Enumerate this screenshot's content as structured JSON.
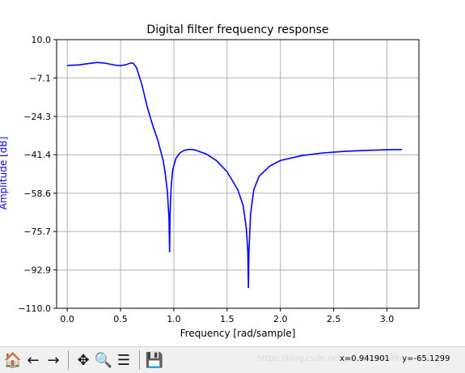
{
  "chart_data": {
    "type": "line",
    "title": "Digital filter frequency response",
    "xlabel": "Frequency [rad/sample]",
    "ylabel": "Amplitude [dB]",
    "xlim": [
      -0.1,
      3.3
    ],
    "ylim": [
      -110.0,
      10.0
    ],
    "xticks": [
      "0.0",
      "0.5",
      "1.0",
      "1.5",
      "2.0",
      "2.5",
      "3.0"
    ],
    "xtick_values": [
      0.0,
      0.5,
      1.0,
      1.5,
      2.0,
      2.5,
      3.0
    ],
    "yticks": [
      "10.0",
      "−7.1",
      "−24.3",
      "−41.4",
      "−58.6",
      "−75.7",
      "−92.9",
      "−110.0"
    ],
    "ytick_values": [
      10.0,
      -7.1,
      -24.3,
      -41.4,
      -58.6,
      -75.7,
      -92.9,
      -110.0
    ],
    "grid": true,
    "line_color": "#0000ff",
    "ylabel_color": "#0000ff",
    "series": [
      {
        "x": [
          0.0,
          0.1,
          0.2,
          0.28,
          0.35,
          0.45,
          0.5,
          0.55,
          0.6,
          0.62,
          0.65,
          0.7,
          0.75,
          0.8,
          0.85,
          0.9,
          0.92,
          0.94,
          0.955,
          0.96,
          0.965,
          0.975,
          0.99,
          1.02,
          1.06,
          1.1,
          1.15,
          1.2,
          1.3,
          1.4,
          1.5,
          1.6,
          1.65,
          1.68,
          1.695,
          1.7,
          1.705,
          1.72,
          1.75,
          1.8,
          1.9,
          2.0,
          2.2,
          2.4,
          2.6,
          2.8,
          3.0,
          3.14159
        ],
        "y": [
          -1.5,
          -1.3,
          -0.7,
          -0.2,
          -0.5,
          -1.4,
          -1.6,
          -1.2,
          -0.4,
          -0.6,
          -2.5,
          -10.0,
          -20.0,
          -28.0,
          -35.0,
          -44.0,
          -50.0,
          -58.0,
          -70.0,
          -85.0,
          -68.0,
          -56.0,
          -48.0,
          -43.0,
          -40.5,
          -39.4,
          -39.0,
          -39.3,
          -41.0,
          -44.0,
          -49.0,
          -57.0,
          -64.0,
          -74.0,
          -85.0,
          -101.0,
          -85.0,
          -68.0,
          -57.0,
          -51.0,
          -46.5,
          -44.0,
          -41.8,
          -40.6,
          -39.9,
          -39.5,
          -39.2,
          -39.1
        ]
      }
    ]
  },
  "toolbar": {
    "home_icon": "🏠",
    "back_icon": "←",
    "forward_icon": "→",
    "pan_icon": "✥",
    "zoom_icon": "🔍",
    "configure_icon": "☰",
    "save_icon": "💾",
    "coord_x": "x=0.941901",
    "coord_y": "y=-65.1299"
  },
  "watermark": "https://blog.csdn.net/qq_41939049"
}
